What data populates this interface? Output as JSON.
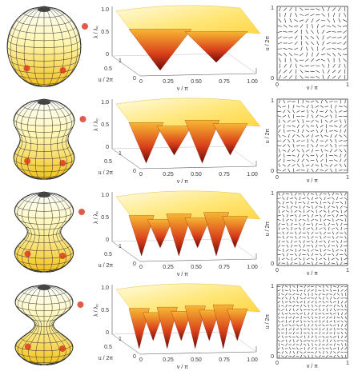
{
  "rows": [
    {
      "surface": {
        "z_label": "λ / λ₀",
        "z_ticks": [
          "1.0",
          "0.5",
          "0"
        ],
        "u_label": "u / 2π",
        "u_ticks": [
          "1",
          "0.5",
          "0"
        ],
        "v_label": "v / π",
        "v_ticks": [
          "0",
          "0.25",
          "0.50",
          "0.75",
          "1.00"
        ]
      },
      "director": {
        "y_label": "u / 2π",
        "y_ticks": [
          "1",
          "0"
        ],
        "x_label": "v / π",
        "x_ticks": [
          "0",
          "1"
        ]
      }
    },
    {
      "surface": {
        "z_label": "λ / λ₀",
        "z_ticks": [
          "1.0",
          "0.5",
          "0"
        ],
        "u_label": "u / 2π",
        "u_ticks": [
          "1",
          "0.5",
          "0"
        ],
        "v_label": "v / π",
        "v_ticks": [
          "0",
          "0.25",
          "0.50",
          "0.75",
          "1.00"
        ]
      },
      "director": {
        "y_label": "u / 2π",
        "y_ticks": [
          "1",
          "0"
        ],
        "x_label": "v / π",
        "x_ticks": [
          "0",
          "1"
        ]
      }
    },
    {
      "surface": {
        "z_label": "λ / λ₀",
        "z_ticks": [
          "1.0",
          "0.5",
          "0"
        ],
        "u_label": "u / 2π",
        "u_ticks": [
          "1",
          "0.5",
          "0"
        ],
        "v_label": "v / π",
        "v_ticks": [
          "0",
          "0.25",
          "0.50",
          "0.75",
          "1.00"
        ]
      },
      "director": {
        "y_label": "u / 2π",
        "y_ticks": [
          "1",
          "0"
        ],
        "x_label": "v / π",
        "x_ticks": [
          "0",
          "1"
        ]
      }
    },
    {
      "surface": {
        "z_label": "λ / λ₀",
        "z_ticks": [
          "1.0",
          "0.5",
          "0"
        ],
        "u_label": "u / 2π",
        "u_ticks": [
          "1",
          "0.5",
          "0"
        ],
        "v_label": "v / π",
        "v_ticks": [
          "0",
          "0.25",
          "0.50",
          "0.75",
          "1.00"
        ]
      },
      "director": {
        "y_label": "u / 2π",
        "y_ticks": [
          "1",
          "0"
        ],
        "x_label": "v / π",
        "x_ticks": [
          "0",
          "1"
        ]
      }
    }
  ]
}
